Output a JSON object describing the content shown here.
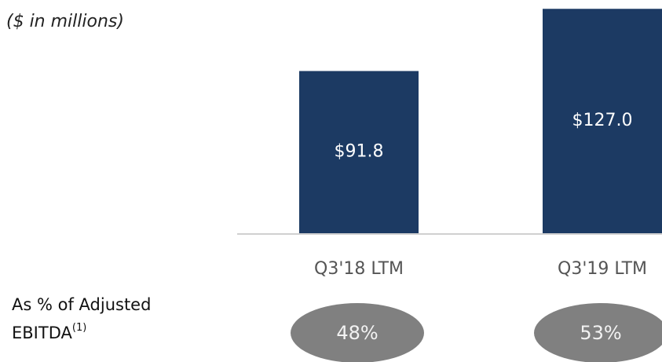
{
  "chart_data": {
    "type": "bar",
    "subtitle": "($ in millions)",
    "categories": [
      "Q3'18 LTM",
      "Q3'19 LTM"
    ],
    "values": [
      91.8,
      127.0
    ],
    "value_labels": [
      "$91.8",
      "$127.0"
    ],
    "color": "#1c3a63",
    "ratio_title": "As % of Adjusted",
    "ratio_title_2": "EBITDA",
    "ratio_footnote": "(1)",
    "ratios": [
      48,
      53
    ],
    "ratio_labels": [
      "48%",
      "53%"
    ],
    "ratio_color": "#808080"
  }
}
